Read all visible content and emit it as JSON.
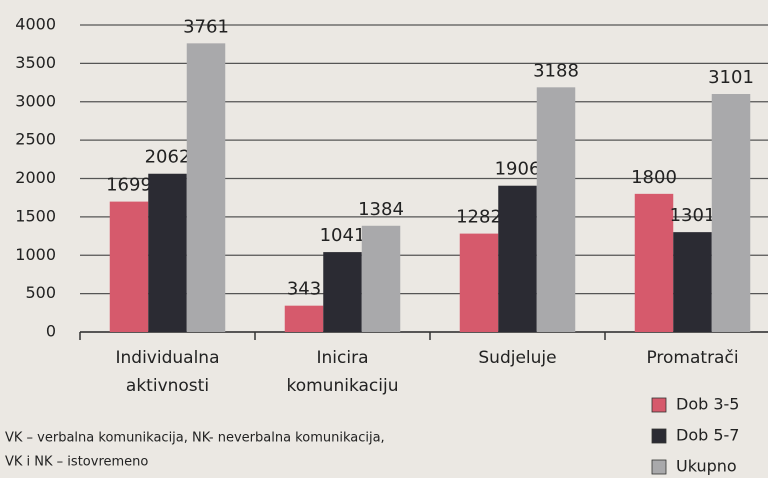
{
  "chart_data": {
    "type": "bar",
    "categories": [
      [
        "Individualna",
        "aktivnosti"
      ],
      [
        "Inicira",
        "komunikaciju"
      ],
      [
        "Sudjeluje"
      ],
      [
        "Promatrači"
      ]
    ],
    "series": [
      {
        "name": "Dob 3-5",
        "color": "#d65a6c",
        "values": [
          1699,
          343,
          1282,
          1800
        ]
      },
      {
        "name": "Dob 5-7",
        "color": "#2b2b33",
        "values": [
          2062,
          1041,
          1906,
          1301
        ]
      },
      {
        "name": "Ukupno",
        "color": "#a9a9ab",
        "values": [
          3761,
          1384,
          3188,
          3101
        ]
      }
    ],
    "ylim": [
      0,
      4000
    ],
    "yticks": [
      0,
      500,
      1000,
      1500,
      2000,
      2500,
      3000,
      3500,
      4000
    ],
    "grid": true,
    "note": [
      "VK – verbalna komunikacija, NK- neverbalna komunikacija,",
      "VK i NK – istovremeno"
    ]
  }
}
